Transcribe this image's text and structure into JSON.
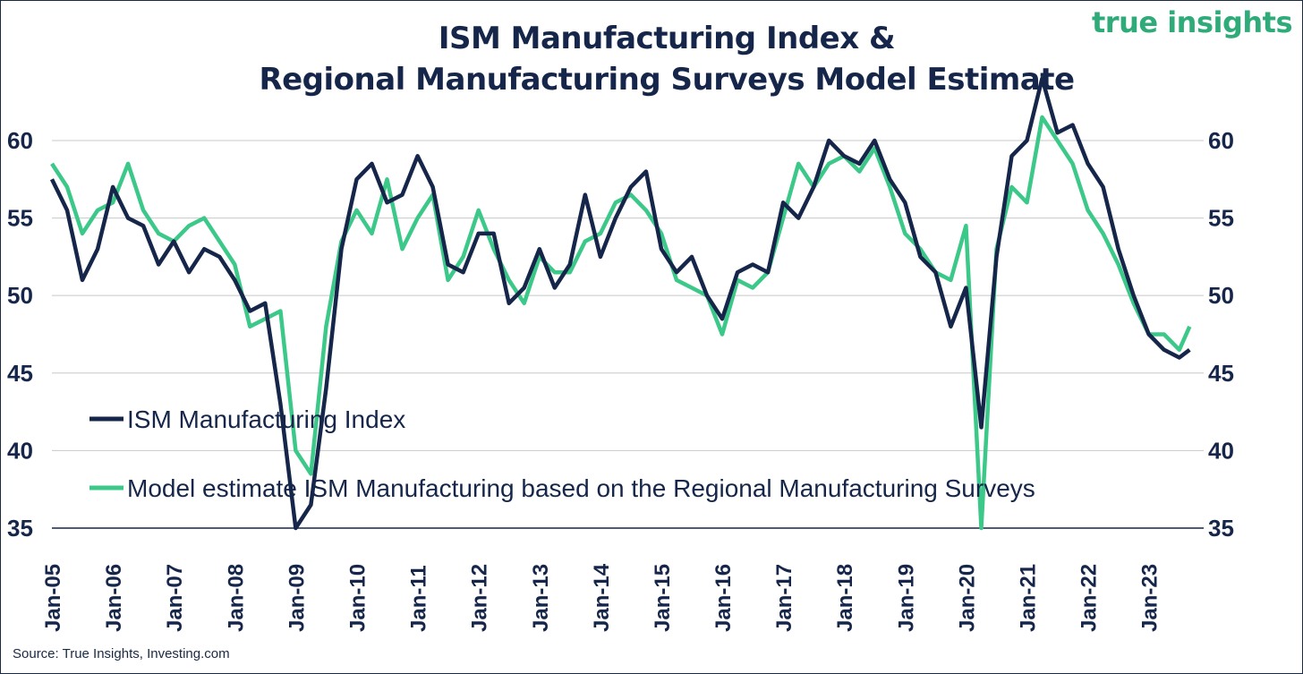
{
  "title_line1": "ISM Manufacturing Index &",
  "title_line2": "Regional Manufacturing Surveys Model Estimate",
  "logo": "true insights",
  "source": "Source: True Insights, Investing.com",
  "colors": {
    "ism": "#16264a",
    "model": "#3cc889",
    "grid": "#c8c8c8",
    "text": "#16264a"
  },
  "chart_data": {
    "type": "line",
    "ylim": [
      35,
      63
    ],
    "yticks": [
      35,
      40,
      45,
      50,
      55,
      60
    ],
    "grid": true,
    "legend_position": "lower-left",
    "x_ticks": [
      "Jan-05",
      "Jan-06",
      "Jan-07",
      "Jan-08",
      "Jan-09",
      "Jan-10",
      "Jan-11",
      "Jan-12",
      "Jan-13",
      "Jan-14",
      "Jan-15",
      "Jan-16",
      "Jan-17",
      "Jan-18",
      "Jan-19",
      "Jan-20",
      "Jan-21",
      "Jan-22",
      "Jan-23"
    ],
    "series": [
      {
        "name": "ISM Manufacturing Index",
        "points": [
          [
            2005.0,
            57.5
          ],
          [
            2005.25,
            55.5
          ],
          [
            2005.5,
            51.0
          ],
          [
            2005.75,
            53.0
          ],
          [
            2006.0,
            57.0
          ],
          [
            2006.25,
            55.0
          ],
          [
            2006.5,
            54.5
          ],
          [
            2006.75,
            52.0
          ],
          [
            2007.0,
            53.5
          ],
          [
            2007.25,
            51.5
          ],
          [
            2007.5,
            53.0
          ],
          [
            2007.75,
            52.5
          ],
          [
            2008.0,
            51.0
          ],
          [
            2008.25,
            49.0
          ],
          [
            2008.5,
            49.5
          ],
          [
            2008.75,
            43.0
          ],
          [
            2009.0,
            35.0
          ],
          [
            2009.25,
            36.5
          ],
          [
            2009.5,
            44.0
          ],
          [
            2009.75,
            53.0
          ],
          [
            2010.0,
            57.5
          ],
          [
            2010.25,
            58.5
          ],
          [
            2010.5,
            56.0
          ],
          [
            2010.75,
            56.5
          ],
          [
            2011.0,
            59.0
          ],
          [
            2011.25,
            57.0
          ],
          [
            2011.5,
            52.0
          ],
          [
            2011.75,
            51.5
          ],
          [
            2012.0,
            54.0
          ],
          [
            2012.25,
            54.0
          ],
          [
            2012.5,
            49.5
          ],
          [
            2012.75,
            50.5
          ],
          [
            2013.0,
            53.0
          ],
          [
            2013.25,
            50.5
          ],
          [
            2013.5,
            52.0
          ],
          [
            2013.75,
            56.5
          ],
          [
            2014.0,
            52.5
          ],
          [
            2014.25,
            55.0
          ],
          [
            2014.5,
            57.0
          ],
          [
            2014.75,
            58.0
          ],
          [
            2015.0,
            53.0
          ],
          [
            2015.25,
            51.5
          ],
          [
            2015.5,
            52.5
          ],
          [
            2015.75,
            50.0
          ],
          [
            2016.0,
            48.5
          ],
          [
            2016.25,
            51.5
          ],
          [
            2016.5,
            52.0
          ],
          [
            2016.75,
            51.5
          ],
          [
            2017.0,
            56.0
          ],
          [
            2017.25,
            55.0
          ],
          [
            2017.5,
            57.0
          ],
          [
            2017.75,
            60.0
          ],
          [
            2018.0,
            59.0
          ],
          [
            2018.25,
            58.5
          ],
          [
            2018.5,
            60.0
          ],
          [
            2018.75,
            57.5
          ],
          [
            2019.0,
            56.0
          ],
          [
            2019.25,
            52.5
          ],
          [
            2019.5,
            51.5
          ],
          [
            2019.75,
            48.0
          ],
          [
            2020.0,
            50.5
          ],
          [
            2020.25,
            41.5
          ],
          [
            2020.5,
            52.5
          ],
          [
            2020.75,
            59.0
          ],
          [
            2021.0,
            60.0
          ],
          [
            2021.25,
            64.0
          ],
          [
            2021.5,
            60.5
          ],
          [
            2021.75,
            61.0
          ],
          [
            2022.0,
            58.5
          ],
          [
            2022.25,
            57.0
          ],
          [
            2022.5,
            53.0
          ],
          [
            2022.75,
            50.0
          ],
          [
            2023.0,
            47.5
          ],
          [
            2023.25,
            46.5
          ],
          [
            2023.5,
            46.0
          ],
          [
            2023.67,
            46.5
          ]
        ]
      },
      {
        "name": "Model estimate ISM Manufacturing based on the Regional Manufacturing Surveys",
        "points": [
          [
            2005.0,
            58.5
          ],
          [
            2005.25,
            57.0
          ],
          [
            2005.5,
            54.0
          ],
          [
            2005.75,
            55.5
          ],
          [
            2006.0,
            56.0
          ],
          [
            2006.25,
            58.5
          ],
          [
            2006.5,
            55.5
          ],
          [
            2006.75,
            54.0
          ],
          [
            2007.0,
            53.5
          ],
          [
            2007.25,
            54.5
          ],
          [
            2007.5,
            55.0
          ],
          [
            2007.75,
            53.5
          ],
          [
            2008.0,
            52.0
          ],
          [
            2008.25,
            48.0
          ],
          [
            2008.5,
            48.5
          ],
          [
            2008.75,
            49.0
          ],
          [
            2009.0,
            40.0
          ],
          [
            2009.25,
            38.5
          ],
          [
            2009.5,
            48.0
          ],
          [
            2009.75,
            53.5
          ],
          [
            2010.0,
            55.5
          ],
          [
            2010.25,
            54.0
          ],
          [
            2010.5,
            57.5
          ],
          [
            2010.75,
            53.0
          ],
          [
            2011.0,
            55.0
          ],
          [
            2011.25,
            56.5
          ],
          [
            2011.5,
            51.0
          ],
          [
            2011.75,
            52.5
          ],
          [
            2012.0,
            55.5
          ],
          [
            2012.25,
            53.0
          ],
          [
            2012.5,
            51.0
          ],
          [
            2012.75,
            49.5
          ],
          [
            2013.0,
            52.5
          ],
          [
            2013.25,
            51.5
          ],
          [
            2013.5,
            51.5
          ],
          [
            2013.75,
            53.5
          ],
          [
            2014.0,
            54.0
          ],
          [
            2014.25,
            56.0
          ],
          [
            2014.5,
            56.5
          ],
          [
            2014.75,
            55.5
          ],
          [
            2015.0,
            54.0
          ],
          [
            2015.25,
            51.0
          ],
          [
            2015.5,
            50.5
          ],
          [
            2015.75,
            50.0
          ],
          [
            2016.0,
            47.5
          ],
          [
            2016.25,
            51.0
          ],
          [
            2016.5,
            50.5
          ],
          [
            2016.75,
            51.5
          ],
          [
            2017.0,
            55.0
          ],
          [
            2017.25,
            58.5
          ],
          [
            2017.5,
            57.0
          ],
          [
            2017.75,
            58.5
          ],
          [
            2018.0,
            59.0
          ],
          [
            2018.25,
            58.0
          ],
          [
            2018.5,
            59.5
          ],
          [
            2018.75,
            57.0
          ],
          [
            2019.0,
            54.0
          ],
          [
            2019.25,
            53.0
          ],
          [
            2019.5,
            51.5
          ],
          [
            2019.75,
            51.0
          ],
          [
            2020.0,
            54.5
          ],
          [
            2020.25,
            35.0
          ],
          [
            2020.5,
            53.0
          ],
          [
            2020.75,
            57.0
          ],
          [
            2021.0,
            56.0
          ],
          [
            2021.25,
            61.5
          ],
          [
            2021.5,
            60.0
          ],
          [
            2021.75,
            58.5
          ],
          [
            2022.0,
            55.5
          ],
          [
            2022.25,
            54.0
          ],
          [
            2022.5,
            52.0
          ],
          [
            2022.75,
            49.5
          ],
          [
            2023.0,
            47.5
          ],
          [
            2023.25,
            47.5
          ],
          [
            2023.5,
            46.5
          ],
          [
            2023.67,
            48.0
          ]
        ]
      }
    ]
  }
}
